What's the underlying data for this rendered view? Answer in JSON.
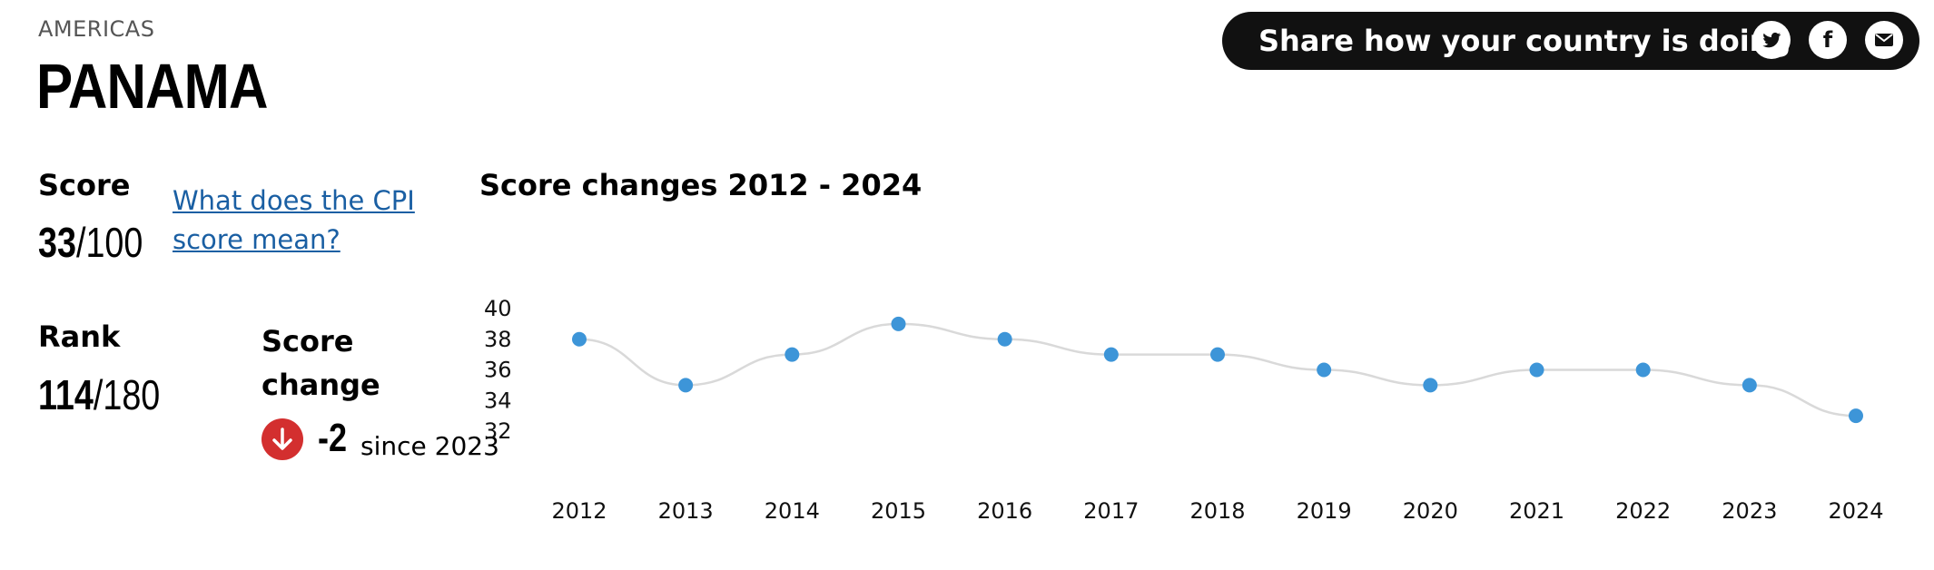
{
  "header": {
    "region": "AMERICAS",
    "country": "PANAMA"
  },
  "share": {
    "label": "Share how your country is doing",
    "icons": [
      "twitter-icon",
      "facebook-icon",
      "email-icon"
    ],
    "facebook_glyph": "f"
  },
  "score": {
    "label": "Score",
    "value": "33",
    "max": "/100",
    "help_link": "What does the CPI score mean?"
  },
  "rank": {
    "label": "Rank",
    "value": "114",
    "max": "/180"
  },
  "score_change": {
    "label": "Score change",
    "value": "-2",
    "since": "since 2023",
    "direction_color": "#d32f2f"
  },
  "colors": {
    "point": "#3d95d8",
    "line": "#d9d9d9",
    "share_bg": "#111111",
    "link": "#1a5fa3"
  },
  "chart_data": {
    "type": "line",
    "title": "Score changes 2012 - 2024",
    "xlabel": "",
    "ylabel": "",
    "x": [
      "2012",
      "2013",
      "2014",
      "2015",
      "2016",
      "2017",
      "2018",
      "2019",
      "2020",
      "2021",
      "2022",
      "2023",
      "2024"
    ],
    "series": [
      {
        "values": [
          38,
          35,
          37,
          39,
          38,
          37,
          37,
          36,
          35,
          36,
          36,
          35,
          33
        ]
      }
    ],
    "yticks": [
      "40",
      "38",
      "36",
      "34",
      "32"
    ],
    "ylim": [
      32,
      40
    ],
    "grid": false,
    "smooth": true
  }
}
